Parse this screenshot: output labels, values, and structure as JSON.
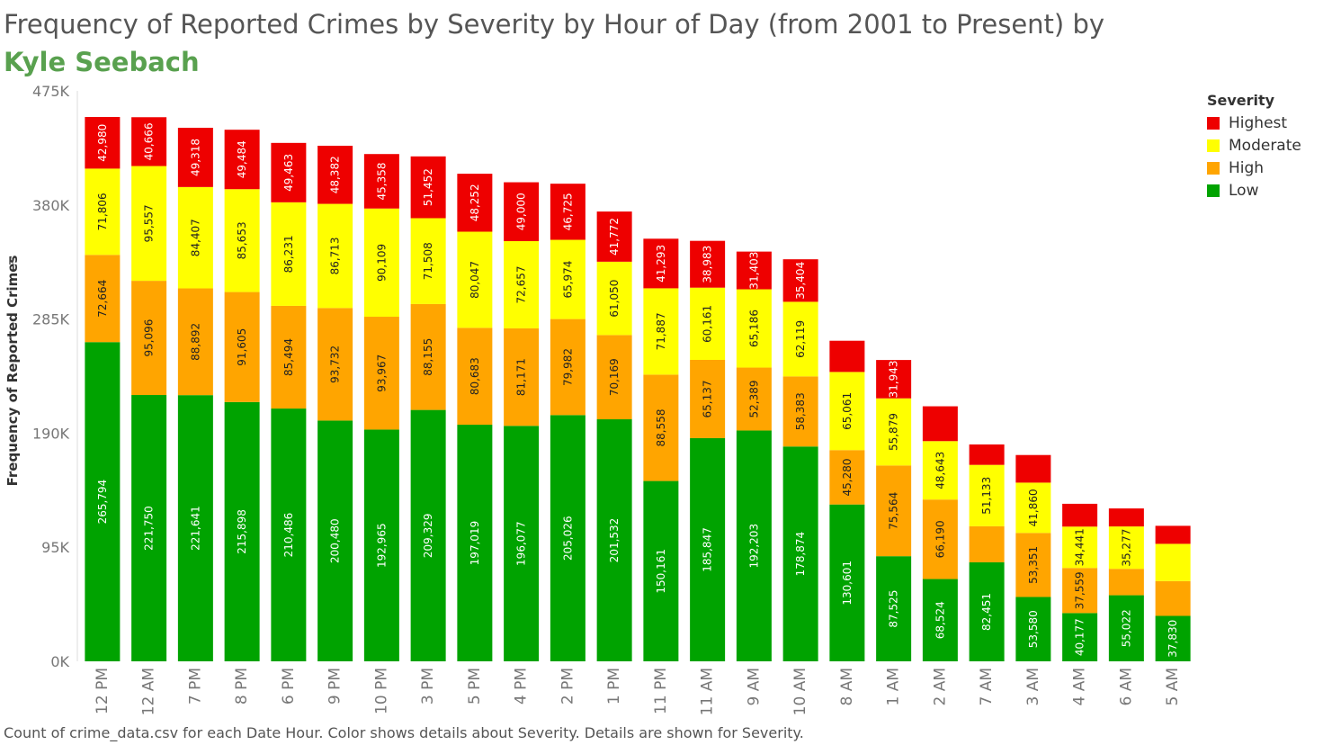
{
  "title": {
    "text": "Frequency of Reported Crimes by Severity by Hour of Day (from 2001 to Present) by ",
    "author": "Kyle Seebach"
  },
  "caption": "Count of crime_data.csv for each Date Hour.  Color shows details about Severity.  Details are shown for Severity.",
  "legend": {
    "title": "Severity",
    "items": [
      {
        "label": "Highest",
        "color": "#ee0000"
      },
      {
        "label": "Moderate",
        "color": "#ffff00"
      },
      {
        "label": "High",
        "color": "#ffa500"
      },
      {
        "label": "Low",
        "color": "#00a300"
      }
    ]
  },
  "chart_data": {
    "type": "bar",
    "stacked": true,
    "ylabel": "Frequency of Reported Crimes",
    "ylim": [
      0,
      475000
    ],
    "yticks": [
      0,
      95000,
      190000,
      285000,
      380000,
      475000
    ],
    "ytick_labels": [
      "0K",
      "95K",
      "190K",
      "285K",
      "380K",
      "475K"
    ],
    "categories": [
      "12 PM",
      "12 AM",
      "7 PM",
      "8 PM",
      "6 PM",
      "9 PM",
      "10 PM",
      "3 PM",
      "5 PM",
      "4 PM",
      "2 PM",
      "1 PM",
      "11 PM",
      "11 AM",
      "9 AM",
      "10 AM",
      "8 AM",
      "1 AM",
      "2 AM",
      "7 AM",
      "3 AM",
      "4 AM",
      "6 AM",
      "5 AM"
    ],
    "series": [
      {
        "name": "Low",
        "color": "#00a300",
        "label_color": "#ffffff",
        "values": [
          265794,
          221750,
          221641,
          215898,
          210486,
          200480,
          192965,
          209329,
          197019,
          196077,
          205026,
          201532,
          150161,
          185847,
          192203,
          178874,
          130601,
          87525,
          68524,
          82451,
          53580,
          40177,
          55022,
          37830
        ],
        "labels": [
          "265,794",
          "221,750",
          "221,641",
          "215,898",
          "210,486",
          "200,480",
          "192,965",
          "209,329",
          "197,019",
          "196,077",
          "205,026",
          "201,532",
          "150,161",
          "185,847",
          "192,203",
          "178,874",
          "130,601",
          "87,525",
          "68,524",
          "82,451",
          "53,580",
          "40,177",
          "55,022",
          "37,830"
        ]
      },
      {
        "name": "High",
        "color": "#ffa500",
        "label_color": "#222222",
        "values": [
          72664,
          95096,
          88892,
          91605,
          85494,
          93732,
          93967,
          88155,
          80683,
          81171,
          79982,
          70169,
          88558,
          65137,
          52389,
          58383,
          45280,
          75564,
          66190,
          30000,
          53351,
          37559,
          22000,
          29000
        ],
        "labels": [
          "72,664",
          "95,096",
          "88,892",
          "91,605",
          "85,494",
          "93,732",
          "93,967",
          "88,155",
          "80,683",
          "81,171",
          "79,982",
          "70,169",
          "88,558",
          "65,137",
          "52,389",
          "58,383",
          "45,280",
          "75,564",
          "66,190",
          "",
          "53,351",
          "37,559",
          "",
          ""
        ]
      },
      {
        "name": "Moderate",
        "color": "#ffff00",
        "label_color": "#222222",
        "values": [
          71806,
          95557,
          84407,
          85653,
          86231,
          86713,
          90109,
          71508,
          80047,
          72657,
          65974,
          61050,
          71887,
          60161,
          65186,
          62119,
          65061,
          55879,
          48643,
          51133,
          41860,
          34441,
          35277,
          31000
        ],
        "labels": [
          "71,806",
          "95,557",
          "84,407",
          "85,653",
          "86,231",
          "86,713",
          "90,109",
          "71,508",
          "80,047",
          "72,657",
          "65,974",
          "61,050",
          "71,887",
          "60,161",
          "65,186",
          "62,119",
          "65,061",
          "55,879",
          "48,643",
          "51,133",
          "41,860",
          "34,441",
          "35,277",
          ""
        ]
      },
      {
        "name": "Highest",
        "color": "#ee0000",
        "label_color": "#ffffff",
        "values": [
          42980,
          40666,
          49318,
          49484,
          49463,
          48382,
          45358,
          51452,
          48252,
          49000,
          46725,
          41772,
          41293,
          38983,
          31403,
          35404,
          26000,
          31943,
          29000,
          17000,
          23000,
          19000,
          15000,
          15000
        ],
        "labels": [
          "42,980",
          "40,666",
          "49,318",
          "49,484",
          "49,463",
          "48,382",
          "45,358",
          "51,452",
          "48,252",
          "49,000",
          "46,725",
          "41,772",
          "41,293",
          "38,983",
          "31,403",
          "35,404",
          "",
          "31,943",
          "",
          "",
          "",
          "",
          "",
          ""
        ]
      }
    ]
  }
}
